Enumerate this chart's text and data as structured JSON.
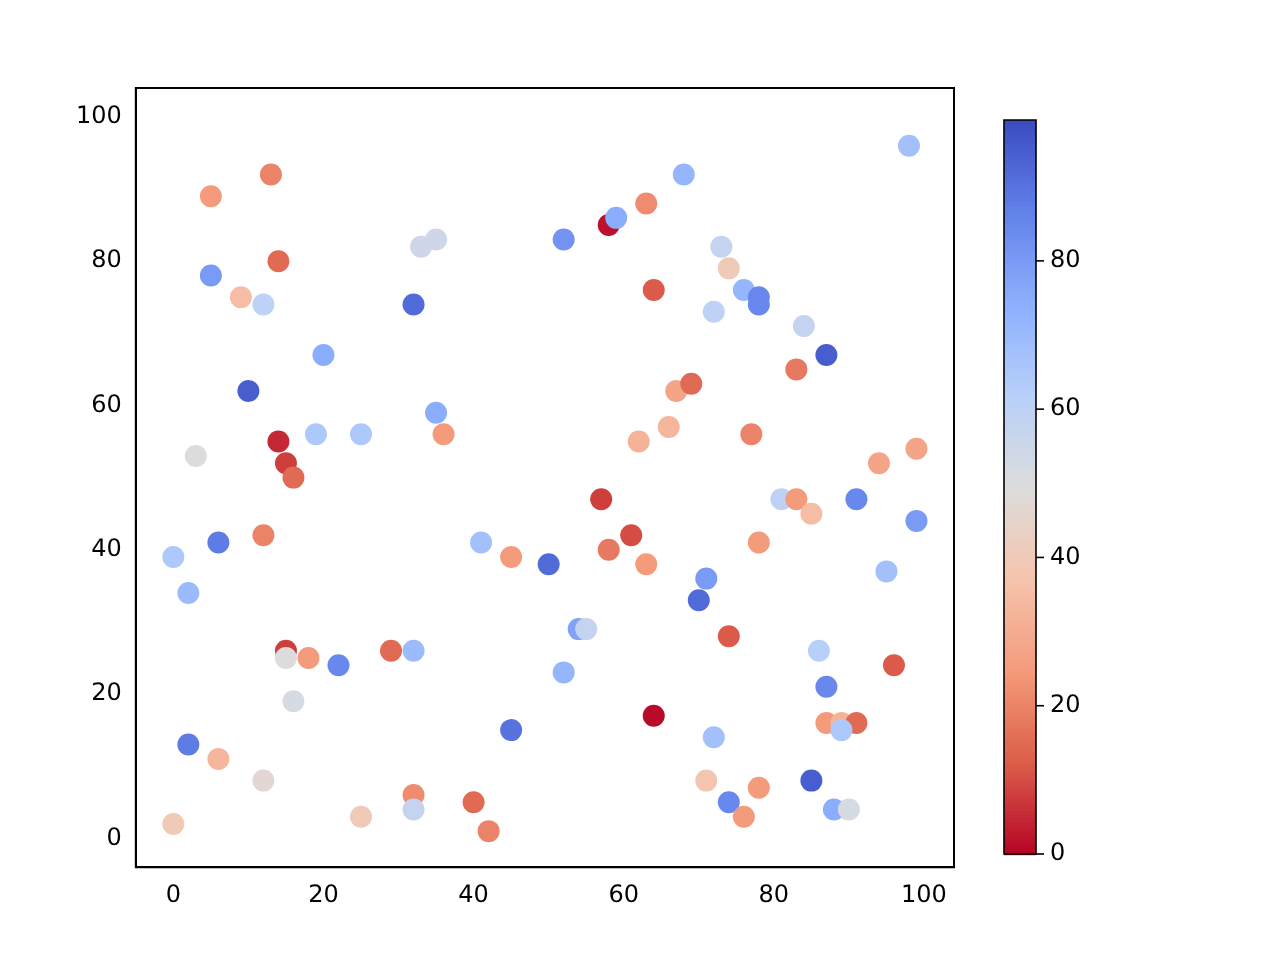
{
  "chart_data": {
    "type": "scatter",
    "marker": "circle",
    "grid": false,
    "legend": false,
    "xlim": [
      -5,
      104
    ],
    "ylim": [
      -4,
      104
    ],
    "xticks": [
      0,
      20,
      40,
      60,
      80,
      100
    ],
    "yticks": [
      0,
      20,
      40,
      60,
      80,
      100
    ],
    "clim": [
      0,
      99
    ],
    "cticks": [
      0,
      20,
      40,
      60,
      80
    ],
    "x": [
      5,
      13,
      5,
      14,
      9,
      12,
      10,
      20,
      14,
      15,
      16,
      3,
      19,
      25,
      0,
      6,
      2,
      12,
      15,
      15,
      18,
      22,
      16,
      2,
      6,
      12,
      0,
      25,
      29,
      32,
      32,
      33,
      35,
      35,
      36,
      32,
      32,
      40,
      42,
      41,
      45,
      45,
      50,
      52,
      58,
      59,
      63,
      64,
      52,
      54,
      55,
      57,
      61,
      58,
      63,
      64,
      62,
      66,
      67,
      69,
      68,
      72,
      73,
      74,
      76,
      78,
      78,
      70,
      71,
      74,
      72,
      71,
      74,
      76,
      78,
      77,
      78,
      81,
      83,
      85,
      83,
      84,
      87,
      91,
      94,
      99,
      98,
      99,
      95,
      86,
      87,
      87,
      89,
      91,
      89,
      96,
      85,
      88,
      90
    ],
    "values": [
      89,
      92,
      78,
      80,
      75,
      74,
      62,
      67,
      55,
      52,
      50,
      53,
      56,
      56,
      39,
      41,
      34,
      42,
      26,
      25,
      25,
      24,
      19,
      13,
      11,
      8,
      2,
      3,
      26,
      26,
      74,
      82,
      83,
      59,
      56,
      6,
      4,
      5,
      1,
      41,
      39,
      15,
      38,
      83,
      85,
      86,
      88,
      76,
      23,
      29,
      29,
      47,
      42,
      40,
      38,
      17,
      55,
      57,
      62,
      63,
      92,
      73,
      82,
      79,
      76,
      75,
      74,
      33,
      36,
      28,
      14,
      8,
      5,
      3,
      7,
      56,
      41,
      47,
      47,
      45,
      65,
      71,
      67,
      47,
      52,
      54,
      96,
      44,
      37,
      26,
      21,
      16,
      16,
      16,
      15,
      24,
      8,
      4,
      4
    ],
    "cvalues": [
      25,
      20,
      80,
      15,
      35,
      60,
      95,
      75,
      5,
      8,
      15,
      50,
      65,
      65,
      65,
      88,
      70,
      20,
      8,
      50,
      25,
      85,
      52,
      88,
      33,
      47,
      40,
      40,
      15,
      70,
      92,
      55,
      55,
      75,
      25,
      22,
      58,
      15,
      20,
      68,
      25,
      90,
      92,
      82,
      2,
      75,
      22,
      12,
      72,
      78,
      58,
      8,
      10,
      18,
      25,
      1,
      32,
      33,
      28,
      15,
      72,
      60,
      58,
      40,
      72,
      85,
      85,
      92,
      80,
      12,
      68,
      38,
      85,
      25,
      25,
      20,
      25,
      60,
      25,
      35,
      18,
      58,
      95,
      85,
      28,
      28,
      68,
      80,
      68,
      62,
      85,
      25,
      32,
      15,
      65,
      12,
      95,
      75,
      52
    ]
  }
}
